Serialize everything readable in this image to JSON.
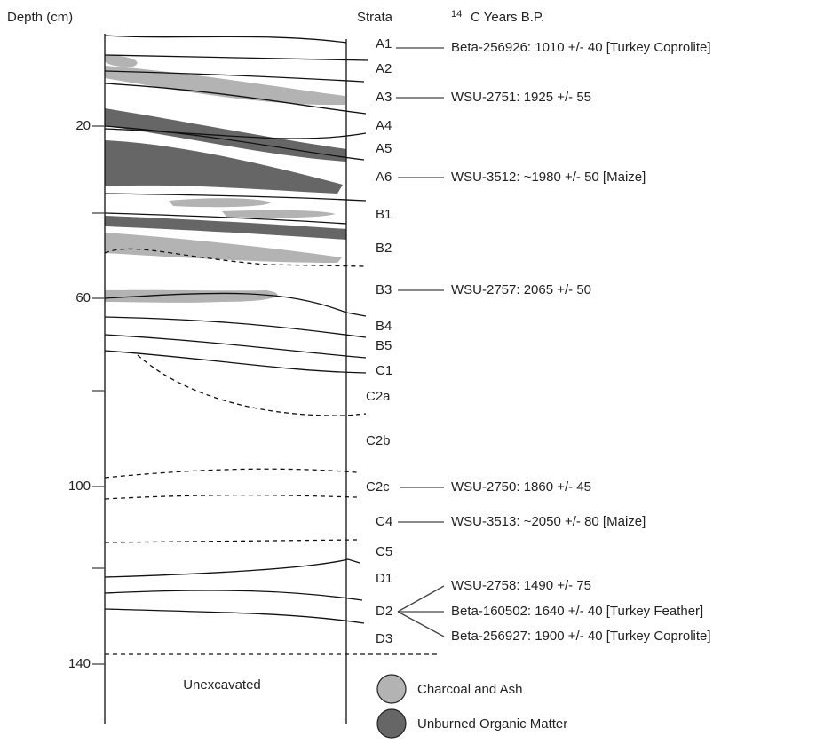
{
  "header": {
    "depth_label": "Depth (cm)",
    "strata_label": "Strata",
    "dates_label": {
      "superscript": "14",
      "text": "C Years B.P."
    }
  },
  "depth_labels": [
    "20",
    "60",
    "100",
    "140"
  ],
  "strata": [
    "A1",
    "A2",
    "A3",
    "A4",
    "A5",
    "A6",
    "B1",
    "B2",
    "B3",
    "B4",
    "B5",
    "C1",
    "C2a",
    "C2b",
    "C2c",
    "C4",
    "C5",
    "D1",
    "D2",
    "D3"
  ],
  "dates": [
    "Beta-256926: 1010 +/- 40 [Turkey Coprolite]",
    "WSU-2751: 1925 +/- 55",
    "WSU-3512: ~1980 +/- 50 [Maize]",
    "WSU-2757: 2065 +/- 50",
    "WSU-2750: 1860 +/- 45",
    "WSU-3513: ~2050 +/- 80 [Maize]",
    "WSU-2758: 1490 +/- 75",
    "Beta-160502: 1640 +/- 40 [Turkey Feather]",
    "Beta-256927: 1900 +/- 40 [Turkey Coprolite]"
  ],
  "unexcavated_label": "Unexcavated",
  "legend": [
    "Charcoal and Ash",
    "Unburned Organic Matter"
  ]
}
